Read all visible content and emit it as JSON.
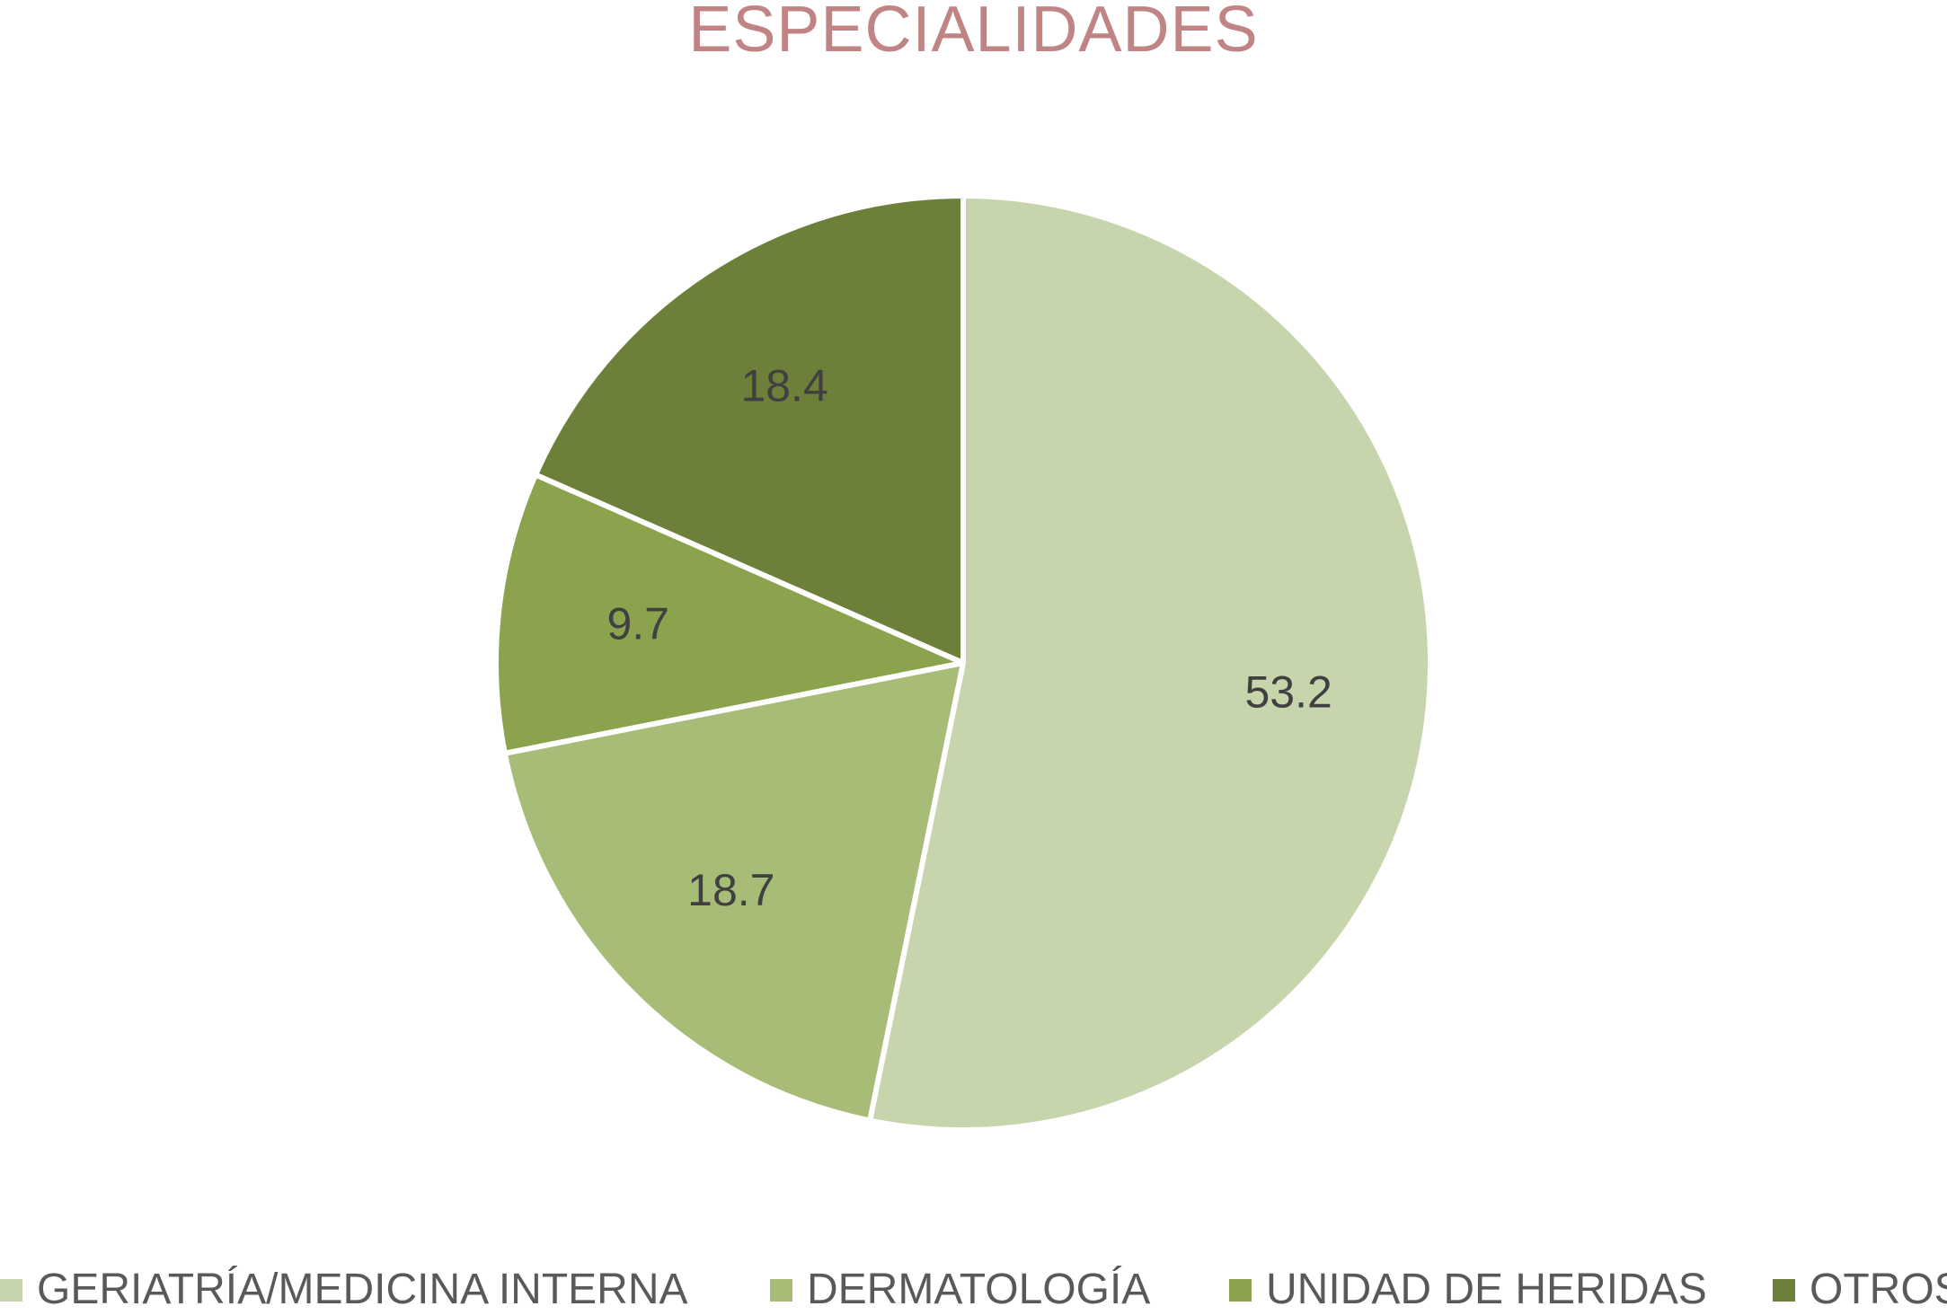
{
  "chart_data": {
    "type": "pie",
    "title": "ESPECIALIDADES",
    "categories": [
      "GERIATRÍA/MEDICINA INTERNA",
      "DERMATOLOGÍA",
      "UNIDAD DE HERIDAS",
      "OTROS"
    ],
    "values": [
      53.2,
      18.7,
      9.7,
      18.4
    ],
    "data_labels": [
      "53.2",
      "18.7",
      "9.7",
      "18.4"
    ],
    "colors": [
      "#c7d5ad",
      "#a7bc77",
      "#8aa34c",
      "#6d8039"
    ],
    "start_angle": "top (12 o'clock)",
    "direction": "clockwise",
    "legend_position": "bottom"
  }
}
